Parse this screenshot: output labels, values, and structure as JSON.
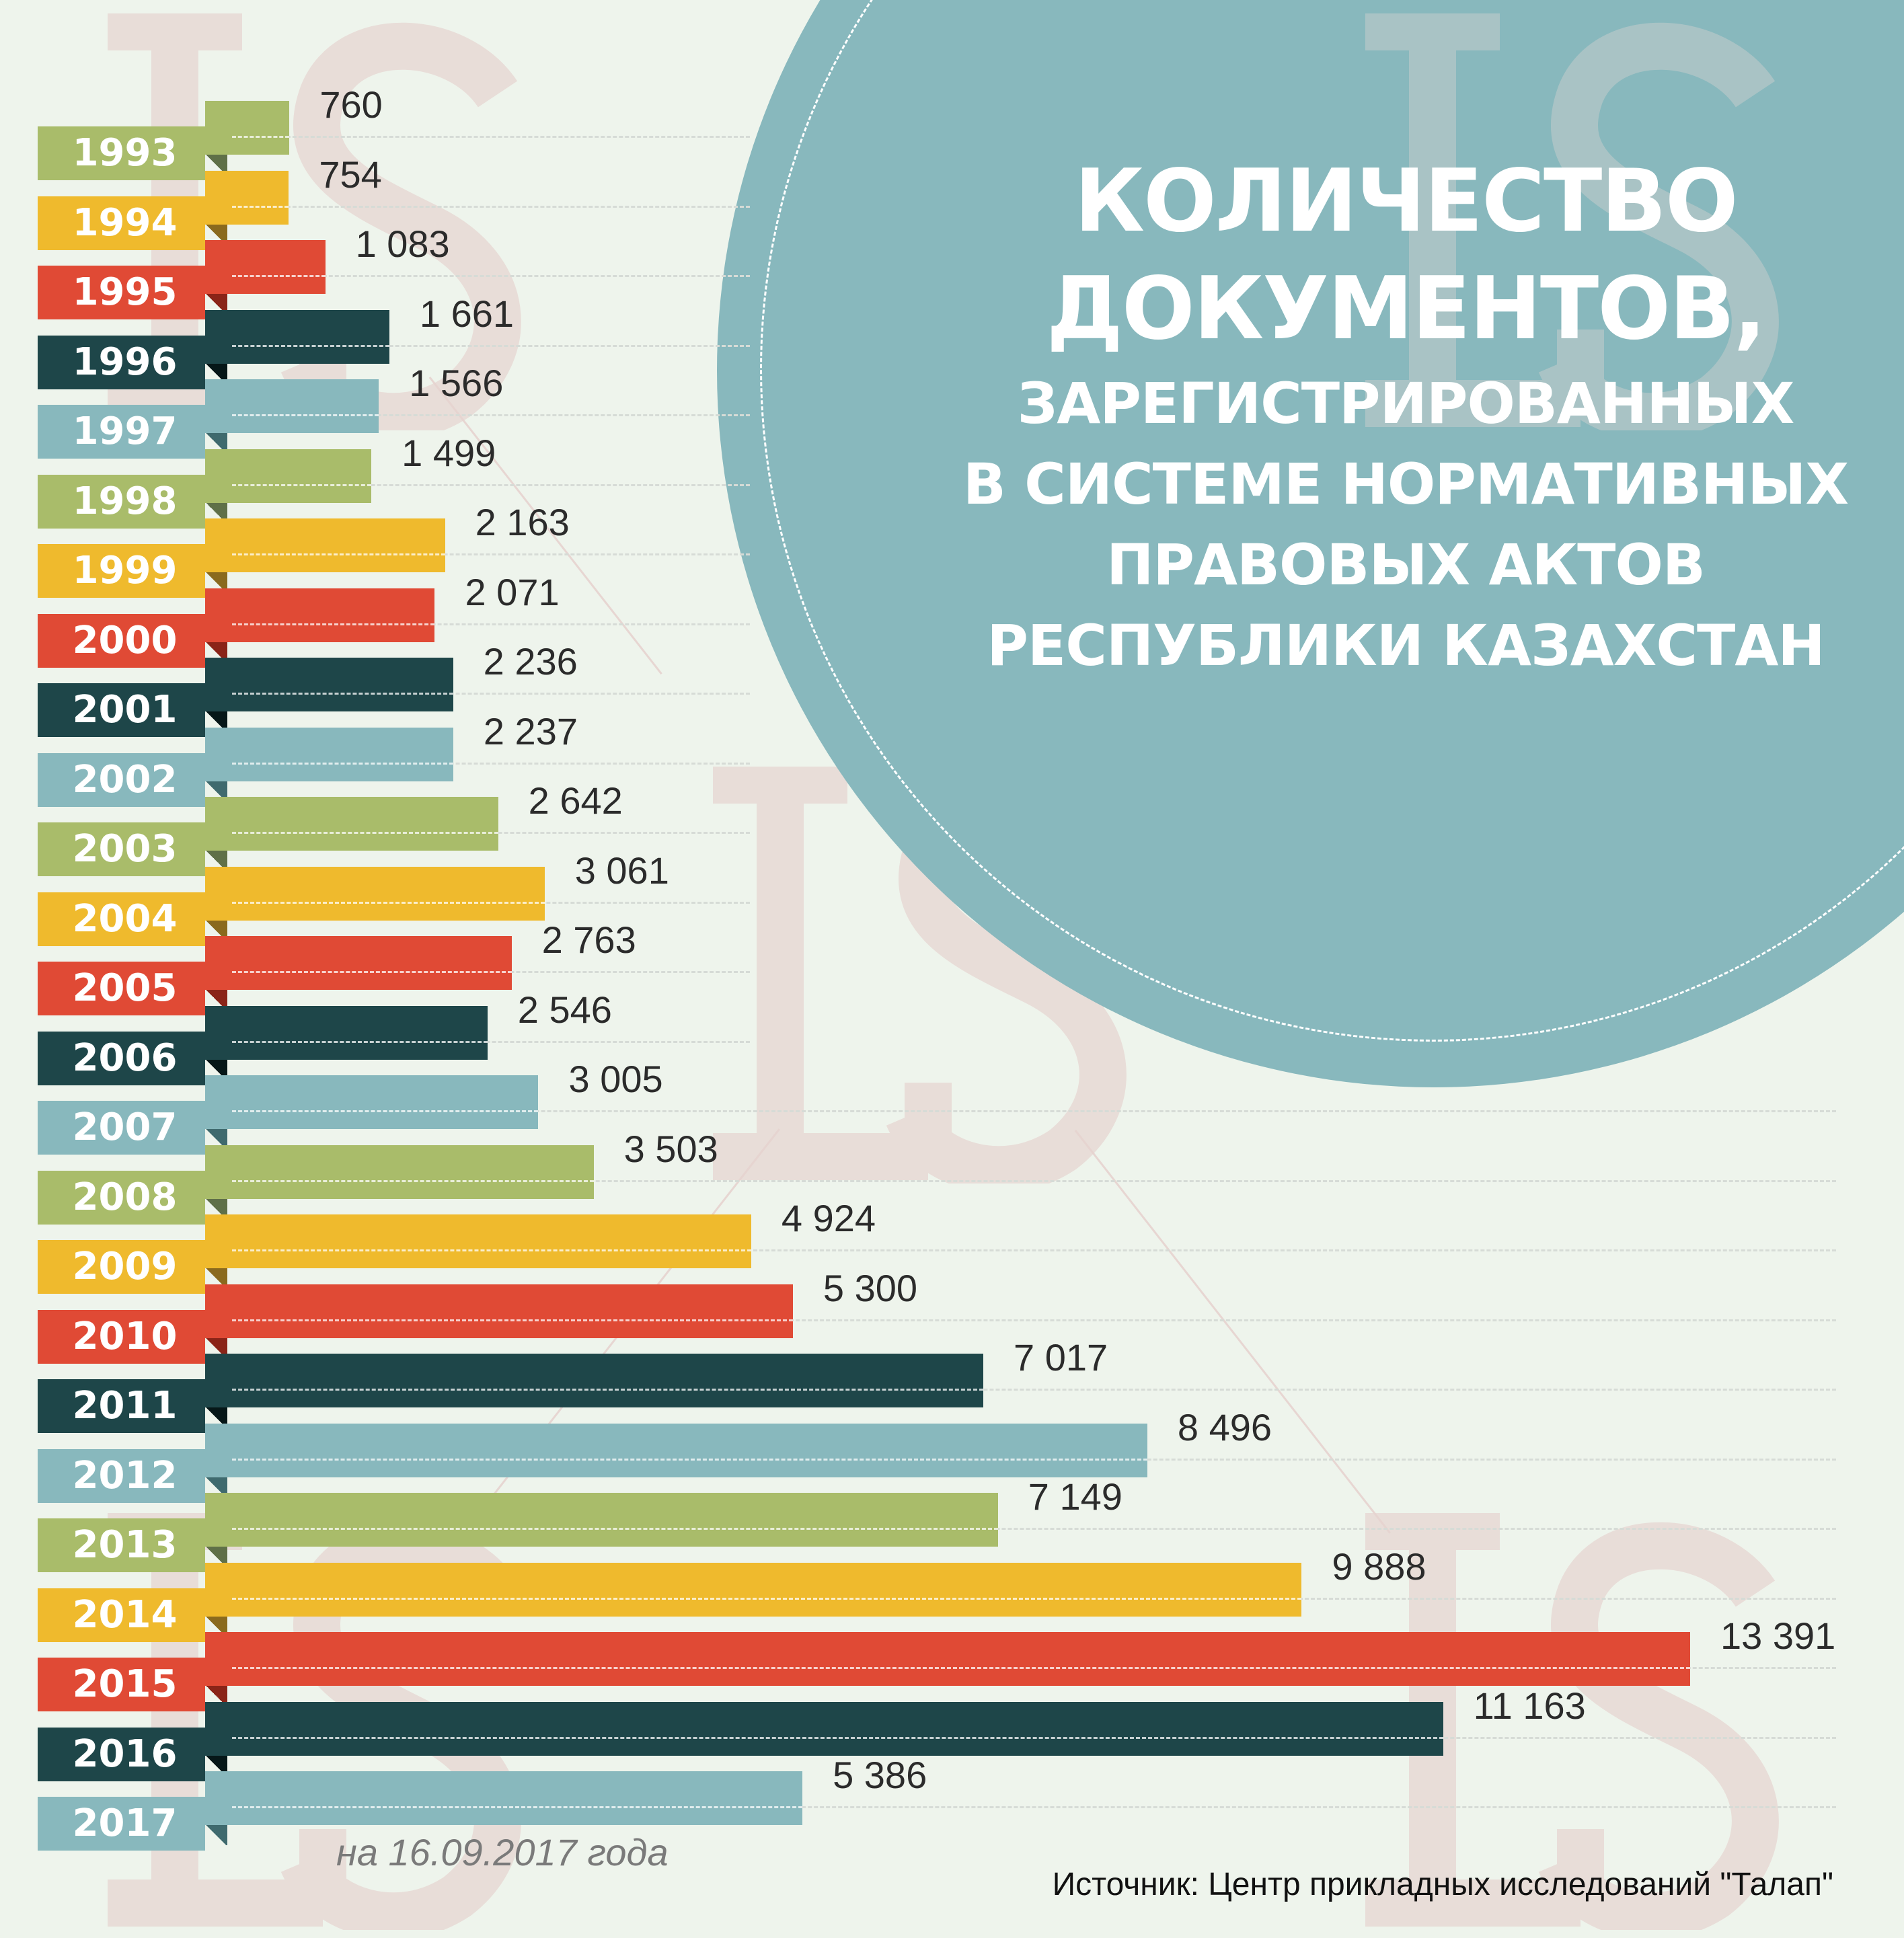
{
  "title": {
    "line1": "КОЛИЧЕСТВО",
    "line2": "ДОКУМЕНТОВ,",
    "line3": "ЗАРЕГИСТРИРОВАННЫХ",
    "line4": "В СИСТЕМЕ НОРМАТИВНЫХ",
    "line5": "ПРАВОВЫХ АКТОВ",
    "line6": "РЕСПУБЛИКИ КАЗАХСТАН"
  },
  "footer": {
    "date_note": "на 16.09.2017 года",
    "source": "Источник: Центр прикладных исследований \"Талап\""
  },
  "watermark": "LS",
  "colors": {
    "background": "#eef4ec",
    "circle": "#88b8bd",
    "palette": [
      "#a9bc6a",
      "#efba2d",
      "#e04a35",
      "#1e4649",
      "#88b8bd"
    ],
    "fold_palette": [
      "#5f7048",
      "#8a6a1e",
      "#8a2418",
      "#061718",
      "#3f6a6e"
    ]
  },
  "chart_data": {
    "type": "bar",
    "orientation": "horizontal",
    "title": "Количество документов, зарегистрированных в системе нормативных правовых актов Республики Казахстан",
    "xlabel": "",
    "ylabel": "",
    "xlim": [
      0,
      13391
    ],
    "grid": false,
    "categories": [
      "1993",
      "1994",
      "1995",
      "1996",
      "1997",
      "1998",
      "1999",
      "2000",
      "2001",
      "2002",
      "2003",
      "2004",
      "2005",
      "2006",
      "2007",
      "2008",
      "2009",
      "2010",
      "2011",
      "2012",
      "2013",
      "2014",
      "2015",
      "2016",
      "2017"
    ],
    "values": [
      760,
      754,
      1083,
      1661,
      1566,
      1499,
      2163,
      2071,
      2236,
      2237,
      2642,
      3061,
      2763,
      2546,
      3005,
      3503,
      4924,
      5300,
      7017,
      8496,
      7149,
      9888,
      13391,
      11163,
      5386
    ],
    "value_labels": [
      "760",
      "754",
      "1 083",
      "1 661",
      "1 566",
      "1 499",
      "2 163",
      "2 071",
      "2 236",
      "2 237",
      "2 642",
      "3 061",
      "2 763",
      "2 546",
      "3 005",
      "3 503",
      "4 924",
      "5 300",
      "7 017",
      "8 496",
      "7 149",
      "9 888",
      "13 391",
      "11 163",
      "5 386"
    ]
  }
}
